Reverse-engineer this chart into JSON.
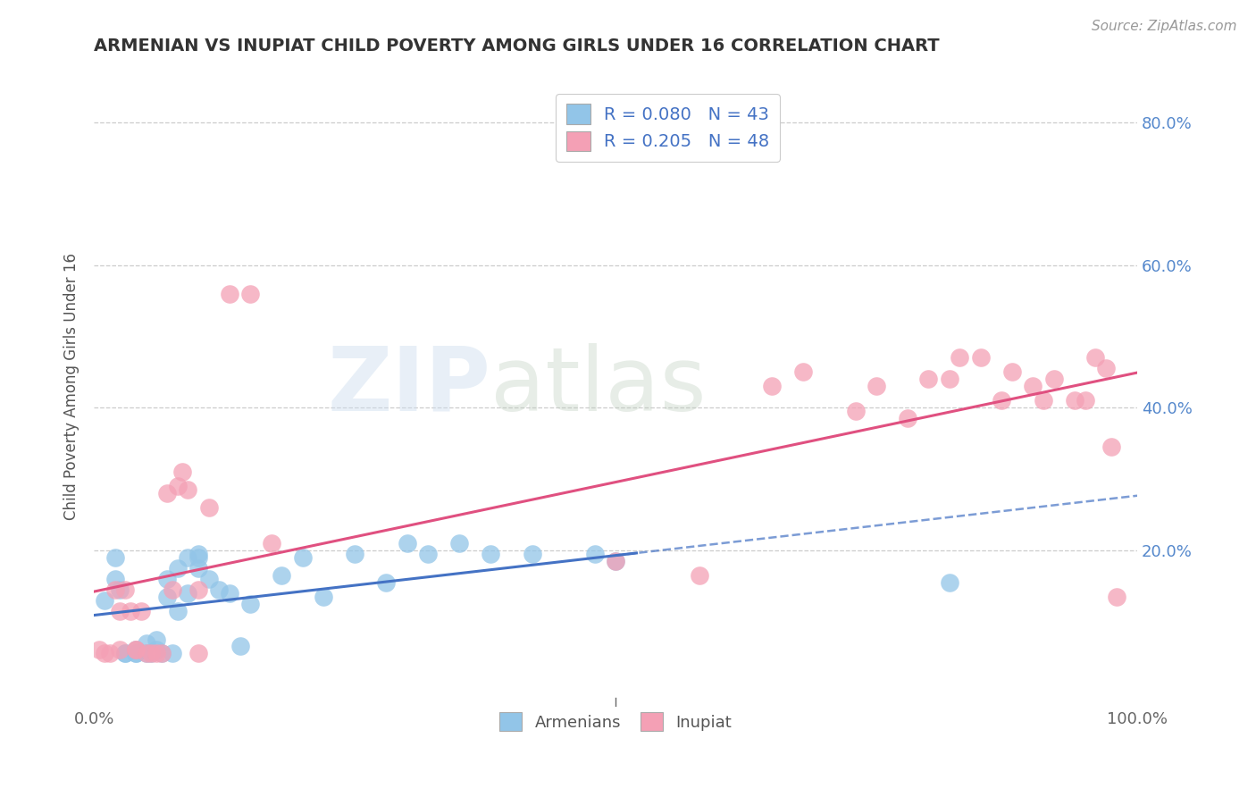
{
  "title": "ARMENIAN VS INUPIAT CHILD POVERTY AMONG GIRLS UNDER 16 CORRELATION CHART",
  "source": "Source: ZipAtlas.com",
  "ylabel": "Child Poverty Among Girls Under 16",
  "xlim": [
    0.0,
    1.0
  ],
  "ylim": [
    -0.02,
    0.88
  ],
  "yticks": [
    0.0,
    0.2,
    0.4,
    0.6,
    0.8
  ],
  "yticklabels_right": [
    "",
    "20.0%",
    "40.0%",
    "60.0%",
    "80.0%"
  ],
  "legend_armenian_label": "R = 0.080   N = 43",
  "legend_inupiat_label": "R = 0.205   N = 48",
  "legend_bottom_armenian": "Armenians",
  "legend_bottom_inupiat": "Inupiat",
  "armenian_color": "#92C5E8",
  "inupiat_color": "#F4A0B5",
  "armenian_line_color": "#4472C4",
  "inupiat_line_color": "#E05080",
  "armenian_line_style": "solid",
  "inupiat_line_style": "solid",
  "background_color": "#FFFFFF",
  "grid_color": "#CCCCCC",
  "watermark_zip": "ZIP",
  "watermark_atlas": "atlas",
  "armenian_x": [
    0.01,
    0.02,
    0.02,
    0.025,
    0.03,
    0.03,
    0.04,
    0.04,
    0.04,
    0.05,
    0.05,
    0.055,
    0.06,
    0.06,
    0.065,
    0.07,
    0.07,
    0.075,
    0.08,
    0.08,
    0.09,
    0.09,
    0.1,
    0.1,
    0.1,
    0.11,
    0.12,
    0.13,
    0.14,
    0.15,
    0.18,
    0.2,
    0.22,
    0.25,
    0.28,
    0.3,
    0.32,
    0.35,
    0.38,
    0.42,
    0.48,
    0.5,
    0.82
  ],
  "armenian_y": [
    0.13,
    0.16,
    0.19,
    0.145,
    0.055,
    0.055,
    0.055,
    0.06,
    0.055,
    0.07,
    0.055,
    0.055,
    0.075,
    0.06,
    0.055,
    0.135,
    0.16,
    0.055,
    0.175,
    0.115,
    0.19,
    0.14,
    0.195,
    0.175,
    0.19,
    0.16,
    0.145,
    0.14,
    0.065,
    0.125,
    0.165,
    0.19,
    0.135,
    0.195,
    0.155,
    0.21,
    0.195,
    0.21,
    0.195,
    0.195,
    0.195,
    0.185,
    0.155
  ],
  "inupiat_x": [
    0.005,
    0.01,
    0.015,
    0.02,
    0.025,
    0.025,
    0.03,
    0.035,
    0.04,
    0.04,
    0.045,
    0.05,
    0.055,
    0.06,
    0.065,
    0.07,
    0.075,
    0.08,
    0.085,
    0.09,
    0.1,
    0.1,
    0.11,
    0.13,
    0.15,
    0.17,
    0.5,
    0.58,
    0.65,
    0.68,
    0.73,
    0.75,
    0.78,
    0.8,
    0.82,
    0.83,
    0.85,
    0.87,
    0.88,
    0.9,
    0.91,
    0.92,
    0.94,
    0.95,
    0.96,
    0.97,
    0.975,
    0.98
  ],
  "inupiat_y": [
    0.06,
    0.055,
    0.055,
    0.145,
    0.115,
    0.06,
    0.145,
    0.115,
    0.06,
    0.06,
    0.115,
    0.055,
    0.055,
    0.055,
    0.055,
    0.28,
    0.145,
    0.29,
    0.31,
    0.285,
    0.145,
    0.055,
    0.26,
    0.56,
    0.56,
    0.21,
    0.185,
    0.165,
    0.43,
    0.45,
    0.395,
    0.43,
    0.385,
    0.44,
    0.44,
    0.47,
    0.47,
    0.41,
    0.45,
    0.43,
    0.41,
    0.44,
    0.41,
    0.41,
    0.47,
    0.455,
    0.345,
    0.135
  ]
}
